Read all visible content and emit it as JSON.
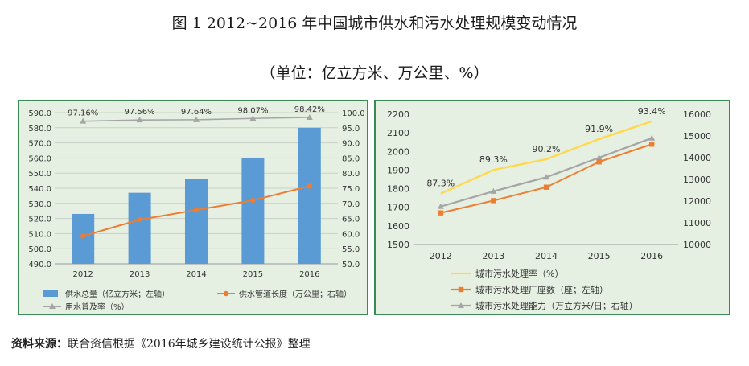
{
  "header": {
    "title": "图 1    2012~2016 年中国城市供水和污水处理规模变动情况",
    "subtitle": "（单位：亿立方米、万公里、%）"
  },
  "footer": {
    "source_label": "资料来源：",
    "source_text": "联合资信根据《2016年城乡建设统计公报》整理"
  },
  "chart_data": [
    {
      "type": "bar",
      "categories": [
        "2012",
        "2013",
        "2014",
        "2015",
        "2016"
      ],
      "series": [
        {
          "name": "供水总量（亿立方米；左轴）",
          "kind": "bar",
          "axis": "left",
          "color": "#5b9bd5",
          "values": [
            523,
            537,
            546,
            560,
            580
          ]
        },
        {
          "name": "供水管道长度（万公里；右轴）",
          "kind": "line",
          "axis": "right",
          "color": "#ed7d31",
          "marker": "circle",
          "values": [
            59.2,
            64.6,
            67.8,
            71.0,
            75.7
          ]
        },
        {
          "name": "用水普及率（%）",
          "kind": "line",
          "axis": "right",
          "color": "#a5a5a5",
          "marker": "triangle",
          "values": [
            97.16,
            97.56,
            97.64,
            98.07,
            98.42
          ],
          "labels": [
            "97.16%",
            "97.56%",
            "97.64%",
            "98.07%",
            "98.42%"
          ]
        }
      ],
      "y_left": {
        "min": 490,
        "max": 590,
        "step": 10,
        "decimals": 1
      },
      "y_right": {
        "min": 50,
        "max": 100,
        "step": 5,
        "decimals": 1
      },
      "grid": true,
      "legend_position": "bottom"
    },
    {
      "type": "line",
      "categories": [
        "2012",
        "2013",
        "2014",
        "2015",
        "2016"
      ],
      "series": [
        {
          "name": "城市污水处理率（%）",
          "kind": "line",
          "axis": "rate",
          "color": "#ffd84d",
          "marker": "none",
          "values": [
            87.3,
            89.3,
            90.2,
            91.9,
            93.4
          ],
          "labels": [
            "87.3%",
            "89.3%",
            "90.2%",
            "91.9%",
            "93.4%"
          ]
        },
        {
          "name": "城市污水处理厂座数（座；左轴）",
          "kind": "line",
          "axis": "left",
          "color": "#ed7d31",
          "marker": "square",
          "values": [
            1670,
            1736,
            1808,
            1944,
            2039
          ]
        },
        {
          "name": "城市污水处理能力（万立方米/日；右轴）",
          "kind": "line",
          "axis": "right",
          "color": "#a5a5a5",
          "marker": "triangle",
          "values": [
            11750,
            12450,
            13100,
            14000,
            14900
          ]
        }
      ],
      "y_left": {
        "min": 1500,
        "max": 2200,
        "step": 100,
        "decimals": 0
      },
      "y_right": {
        "min": 10000,
        "max": 16000,
        "step": 1000,
        "decimals": 0
      },
      "grid": false,
      "legend_position": "bottom"
    }
  ]
}
